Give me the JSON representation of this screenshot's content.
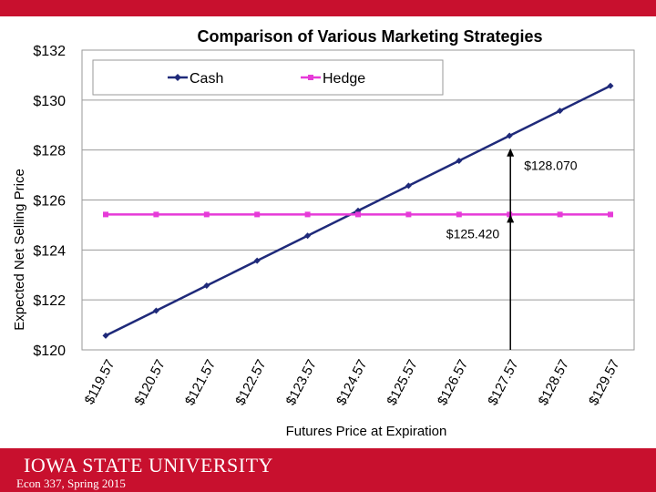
{
  "chart_data": {
    "type": "line",
    "title": "Comparison of Various Marketing Strategies",
    "xlabel": "Futures Price at Expiration",
    "ylabel": "Expected Net Selling Price",
    "categories": [
      "$119.57",
      "$120.57",
      "$121.57",
      "$122.57",
      "$123.57",
      "$124.57",
      "$125.57",
      "$126.57",
      "$127.57",
      "$128.57",
      "$129.57"
    ],
    "series": [
      {
        "name": "Cash",
        "color": "#1f2a7a",
        "marker": "diamond",
        "values": [
          120.57,
          121.57,
          122.57,
          123.57,
          124.57,
          125.57,
          126.57,
          127.57,
          128.57,
          129.57,
          130.57
        ]
      },
      {
        "name": "Hedge",
        "color": "#e63ad8",
        "marker": "square",
        "values": [
          125.42,
          125.42,
          125.42,
          125.42,
          125.42,
          125.42,
          125.42,
          125.42,
          125.42,
          125.42,
          125.42
        ]
      }
    ],
    "ylim": [
      120,
      132
    ],
    "yticks": [
      "$120",
      "$122",
      "$124",
      "$126",
      "$128",
      "$130",
      "$132"
    ],
    "grid": "horizontal",
    "legend_position": "top-left",
    "annotations": [
      {
        "text": "$128.070",
        "value": 128.07
      },
      {
        "text": "$125.420",
        "value": 125.42
      }
    ]
  },
  "footer": {
    "logo_text": "IOWA STATE UNIVERSITY",
    "course_text": "Econ 337, Spring 2015"
  }
}
